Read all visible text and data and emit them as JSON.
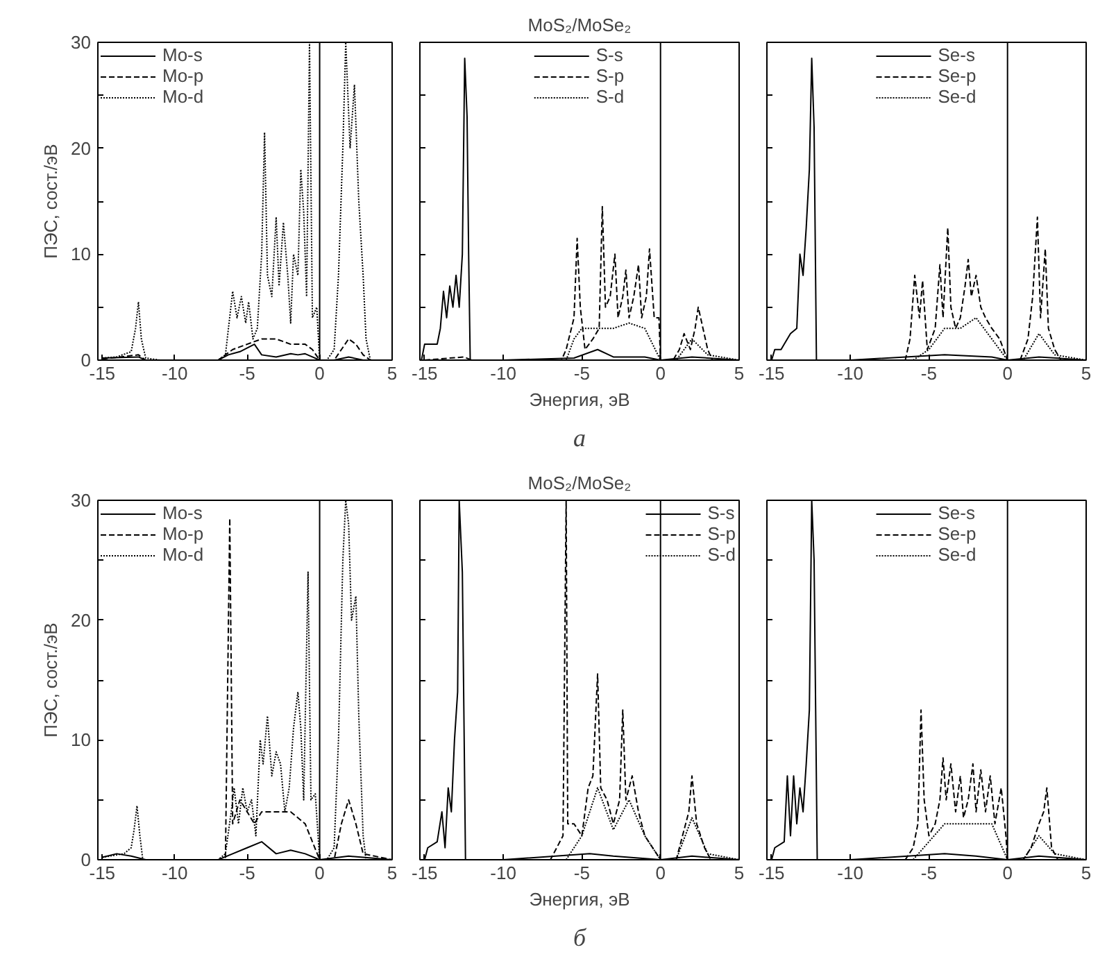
{
  "chart_data": [
    {
      "type": "line",
      "ylabel": "ПЭС, сост./эВ",
      "xlim": [
        -15.3,
        5
      ],
      "ylim": [
        0,
        30
      ],
      "xticks": [
        -15,
        -10,
        -5,
        0,
        5
      ],
      "yticks": [
        0,
        {
          "value": 5,
          "label": null
        },
        10,
        {
          "value": 15,
          "label": null
        },
        20,
        {
          "value": 25,
          "label": null
        },
        30
      ],
      "legend": "top left",
      "ref_lines": [
        {
          "axis": "x",
          "value": 0
        }
      ],
      "series": [
        {
          "name": "Mo-s",
          "color": "#000000",
          "line_style": "solid",
          "x": [
            -15,
            -12.5,
            -12,
            -7,
            -6.3,
            -5.5,
            -4.5,
            -4,
            -3,
            -2,
            -1.5,
            -1,
            -0.5,
            0,
            1,
            2,
            3,
            5
          ],
          "values": [
            0.2,
            0.3,
            0,
            0,
            0.5,
            0.8,
            1.5,
            0.5,
            0.3,
            0.6,
            0.5,
            0.6,
            0.3,
            0,
            0,
            0.3,
            0,
            0
          ]
        },
        {
          "name": "Mo-p",
          "color": "#000000",
          "line_style": "dashed",
          "x": [
            -15,
            -12.5,
            -12,
            -7,
            -6,
            -5,
            -4,
            -3,
            -2,
            -1,
            -0.5,
            0,
            1,
            1.5,
            2,
            2.5,
            3,
            3.5,
            5
          ],
          "values": [
            0.1,
            0.5,
            0,
            0,
            1,
            1.5,
            2,
            2,
            1.5,
            1.5,
            1,
            0,
            0,
            1,
            2,
            1.5,
            0.5,
            0,
            0
          ]
        },
        {
          "name": "Mo-d",
          "color": "#000000",
          "line_style": "dotted",
          "x": [
            -15,
            -14,
            -13,
            -12.7,
            -12.5,
            -12.3,
            -12,
            -11,
            -7,
            -6.5,
            -6,
            -5.7,
            -5.4,
            -5.1,
            -4.9,
            -4.6,
            -4.3,
            -4,
            -3.8,
            -3.6,
            -3.3,
            -3,
            -2.8,
            -2.5,
            -2.2,
            -2,
            -1.8,
            -1.5,
            -1.3,
            -1.1,
            -0.9,
            -0.7,
            -0.5,
            -0.2,
            0,
            0.5,
            1,
            1.3,
            1.6,
            1.8,
            2.1,
            2.4,
            2.7,
            3,
            3.2,
            3.5,
            5
          ],
          "values": [
            0.2,
            0.3,
            0.8,
            3,
            5.5,
            2,
            0.2,
            0,
            0,
            0.5,
            6.5,
            4,
            6,
            3.5,
            5.5,
            2,
            3,
            10,
            21.5,
            8,
            6,
            13.5,
            7,
            13,
            8,
            3.5,
            10,
            8,
            18,
            14,
            6,
            30,
            4,
            5,
            0,
            0,
            1,
            8,
            20,
            30,
            20,
            26,
            15,
            8,
            2,
            0,
            0
          ]
        }
      ]
    },
    {
      "type": "line",
      "title": "MoS₂/MoSe₂",
      "xlabel": "Энергия, эВ",
      "annotations": [
        "а"
      ],
      "xlim": [
        -15.3,
        5
      ],
      "ylim": [
        0,
        30
      ],
      "xticks": [
        -15,
        -10,
        -5,
        0,
        5
      ],
      "yticks": [
        0,
        {
          "value": 5,
          "label": null
        },
        10,
        {
          "value": 15,
          "label": null
        },
        20,
        {
          "value": 25,
          "label": null
        },
        30
      ],
      "tick_labels": "x",
      "legend": "top",
      "ref_lines": [
        {
          "axis": "x",
          "value": 0
        }
      ],
      "series": [
        {
          "name": "S-s",
          "color": "#000000",
          "line_style": "solid",
          "x": [
            -15.2,
            -15,
            -14.6,
            -14.2,
            -14,
            -13.8,
            -13.6,
            -13.4,
            -13.2,
            -13,
            -12.8,
            -12.6,
            -12.45,
            -12.3,
            -12.2,
            -12.1,
            -10,
            -5.5,
            -4,
            -3,
            -1,
            0,
            2,
            5
          ],
          "values": [
            0,
            1.5,
            1.5,
            1.5,
            3,
            6.5,
            4,
            7,
            5,
            8,
            5,
            10,
            28.5,
            23,
            10,
            0,
            0,
            0.2,
            1,
            0.3,
            0.3,
            0,
            0.3,
            0
          ]
        },
        {
          "name": "S-p",
          "color": "#000000",
          "line_style": "dashed",
          "x": [
            -15,
            -12.5,
            -12,
            -6.3,
            -6,
            -5.5,
            -5.3,
            -5.1,
            -4.8,
            -4.3,
            -3.9,
            -3.7,
            -3.5,
            -3.2,
            -2.9,
            -2.7,
            -2.4,
            -2.2,
            -2,
            -1.7,
            -1.4,
            -1.2,
            -0.9,
            -0.7,
            -0.4,
            -0.1,
            0,
            0.8,
            1.2,
            1.5,
            1.9,
            2.2,
            2.4,
            2.7,
            3,
            3.3,
            5
          ],
          "values": [
            0,
            0.3,
            0,
            0,
            1,
            4,
            11.5,
            5,
            1,
            2,
            3,
            14.5,
            5,
            6,
            10,
            4,
            6,
            8.5,
            4,
            6,
            9,
            4,
            6,
            10.5,
            4,
            4,
            0,
            0,
            1,
            2.5,
            1,
            3,
            5,
            3,
            1,
            0,
            0
          ]
        },
        {
          "name": "S-d",
          "color": "#000000",
          "line_style": "dotted",
          "x": [
            -15,
            -6,
            -5.5,
            -5,
            -4,
            -3,
            -2,
            -1,
            0,
            1,
            2,
            3,
            5
          ],
          "values": [
            0,
            0,
            2,
            3,
            3,
            3,
            3.5,
            3,
            0,
            0,
            2,
            0.5,
            0
          ]
        }
      ]
    },
    {
      "type": "line",
      "xlim": [
        -15.3,
        5
      ],
      "ylim": [
        0,
        30
      ],
      "xticks": [
        -15,
        -10,
        -5,
        0,
        5
      ],
      "yticks": [
        0,
        {
          "value": 5,
          "label": null
        },
        10,
        {
          "value": 15,
          "label": null
        },
        20,
        {
          "value": 25,
          "label": null
        },
        30
      ],
      "tick_labels": "x",
      "legend": "top",
      "ref_lines": [
        {
          "axis": "x",
          "value": 0
        }
      ],
      "series": [
        {
          "name": "Se-s",
          "color": "#000000",
          "line_style": "solid",
          "x": [
            -15,
            -14.8,
            -14.4,
            -14.2,
            -13.8,
            -13.4,
            -13.2,
            -13,
            -12.8,
            -12.6,
            -12.45,
            -12.3,
            -12.15,
            -10,
            -4,
            -1,
            0,
            2,
            5
          ],
          "values": [
            0,
            1,
            1,
            1.5,
            2.5,
            3,
            10,
            8,
            12.5,
            18,
            28.5,
            22,
            0,
            0,
            0.5,
            0.3,
            0,
            0.3,
            0
          ]
        },
        {
          "name": "Se-p",
          "color": "#000000",
          "line_style": "dashed",
          "x": [
            -15,
            -6.5,
            -6.2,
            -5.9,
            -5.6,
            -5.4,
            -5.1,
            -4.6,
            -4.3,
            -4.1,
            -3.8,
            -3.6,
            -3.3,
            -3,
            -2.7,
            -2.5,
            -2.3,
            -2,
            -1.7,
            -1.4,
            -1,
            -0.5,
            0,
            0.8,
            1.3,
            1.6,
            1.9,
            2.1,
            2.4,
            2.6,
            3,
            3.4,
            5
          ],
          "values": [
            0,
            0,
            2,
            8,
            4,
            7.5,
            1,
            3,
            9,
            4,
            12.5,
            5,
            3,
            4,
            7,
            9.5,
            6,
            8,
            5,
            4,
            3,
            2,
            0,
            0,
            2,
            6,
            13.5,
            4,
            10.5,
            3,
            1,
            0,
            0
          ]
        },
        {
          "name": "Se-d",
          "color": "#000000",
          "line_style": "dotted",
          "x": [
            -15,
            -6,
            -5,
            -4,
            -3,
            -2,
            -1,
            0,
            1,
            2,
            3,
            5
          ],
          "values": [
            0,
            0,
            1,
            3,
            3,
            4,
            2,
            0,
            0,
            2.5,
            0.5,
            0
          ]
        }
      ]
    },
    {
      "type": "line",
      "ylabel": "ПЭС, сост./эВ",
      "xlim": [
        -15.3,
        5
      ],
      "ylim": [
        0,
        30
      ],
      "xticks": [
        -15,
        -10,
        -5,
        0,
        5
      ],
      "yticks": [
        0,
        {
          "value": 5,
          "label": null
        },
        10,
        {
          "value": 15,
          "label": null
        },
        20,
        {
          "value": 25,
          "label": null
        },
        30
      ],
      "legend": "top left",
      "ref_lines": [
        {
          "axis": "x",
          "value": 0
        }
      ],
      "series": [
        {
          "name": "Mo-s",
          "color": "#000000",
          "line_style": "solid",
          "x": [
            -15,
            -14,
            -13,
            -12,
            -7,
            -6,
            -5,
            -4,
            -3,
            -2,
            -1,
            0,
            2,
            5
          ],
          "values": [
            0.2,
            0.5,
            0.3,
            0,
            0,
            0.5,
            1,
            1.5,
            0.5,
            0.8,
            0.5,
            0,
            0.3,
            0
          ]
        },
        {
          "name": "Mo-p",
          "color": "#000000",
          "line_style": "dashed",
          "x": [
            -15,
            -6.5,
            -6.2,
            -6,
            -5.5,
            -5,
            -4.5,
            -4,
            -3,
            -2,
            -1,
            0,
            1,
            1.5,
            2,
            2.5,
            3,
            5
          ],
          "values": [
            0,
            0,
            28.5,
            3,
            5,
            4,
            3,
            4,
            4,
            4,
            3,
            0,
            0,
            3,
            5,
            3,
            0.5,
            0
          ]
        },
        {
          "name": "Mo-d",
          "color": "#000000",
          "line_style": "dotted",
          "x": [
            -15,
            -13.5,
            -13,
            -12.8,
            -12.6,
            -12.4,
            -12.2,
            -7,
            -6.5,
            -6.1,
            -5.9,
            -5.6,
            -5.3,
            -5,
            -4.7,
            -4.4,
            -4.1,
            -3.9,
            -3.6,
            -3.3,
            -3,
            -2.7,
            -2.4,
            -2.1,
            -1.8,
            -1.5,
            -1.3,
            -1.1,
            -0.8,
            -0.6,
            -0.3,
            0,
            0.5,
            1,
            1.3,
            1.6,
            1.8,
            2,
            2.2,
            2.5,
            2.7,
            3,
            3.2,
            5
          ],
          "values": [
            0.2,
            0.5,
            1,
            2.5,
            4.5,
            2,
            0,
            0,
            0.5,
            4,
            6,
            3,
            6,
            4,
            5,
            2,
            10,
            8,
            12,
            7,
            9,
            8,
            4,
            6,
            11,
            14,
            11,
            5,
            24,
            5,
            5.5,
            0,
            0,
            1,
            10,
            25,
            30,
            28,
            20,
            22,
            12,
            2,
            0,
            0
          ]
        }
      ]
    },
    {
      "type": "line",
      "title": "MoS₂/MoSe₂",
      "xlabel": "Энергия, эВ",
      "annotations": [
        "б"
      ],
      "xlim": [
        -15.3,
        5
      ],
      "ylim": [
        0,
        30
      ],
      "xticks": [
        -15,
        -10,
        -5,
        0,
        5
      ],
      "yticks": [
        0,
        {
          "value": 5,
          "label": null
        },
        10,
        {
          "value": 15,
          "label": null
        },
        20,
        {
          "value": 25,
          "label": null
        },
        30
      ],
      "tick_labels": "x",
      "legend": "top right",
      "ref_lines": [
        {
          "axis": "x",
          "value": 0
        }
      ],
      "series": [
        {
          "name": "S-s",
          "color": "#000000",
          "line_style": "solid",
          "x": [
            -15,
            -14.8,
            -14.2,
            -13.9,
            -13.7,
            -13.5,
            -13.3,
            -13.1,
            -12.9,
            -12.8,
            -12.6,
            -12.4,
            -10,
            -4.5,
            -3,
            0,
            2,
            5
          ],
          "values": [
            0,
            1,
            1.5,
            4,
            1,
            6,
            4,
            10,
            14,
            30,
            24,
            0,
            0,
            0.5,
            0.3,
            0,
            0.3,
            0
          ]
        },
        {
          "name": "S-p",
          "color": "#000000",
          "line_style": "dashed",
          "x": [
            -15,
            -7,
            -6.6,
            -6.2,
            -6,
            -5.9,
            -5.5,
            -5,
            -4.6,
            -4.3,
            -4,
            -3.8,
            -3.4,
            -3,
            -2.6,
            -2.4,
            -2.2,
            -1.8,
            -1.4,
            -1,
            -0.5,
            0,
            1,
            1.4,
            1.8,
            2,
            2.3,
            2.8,
            3.2,
            5
          ],
          "values": [
            0,
            0,
            1,
            2,
            30,
            3,
            3,
            2,
            6,
            7,
            15.5,
            6,
            5,
            3,
            5,
            12.5,
            5,
            7,
            4,
            2,
            1,
            0,
            0,
            2,
            4,
            7,
            3,
            1,
            0,
            0
          ]
        },
        {
          "name": "S-d",
          "color": "#000000",
          "line_style": "dotted",
          "x": [
            -15,
            -6,
            -5,
            -4,
            -3,
            -2,
            -1,
            0,
            1,
            2,
            3,
            5
          ],
          "values": [
            0,
            0,
            2,
            6,
            2.5,
            5,
            2,
            0,
            0,
            3.5,
            0.5,
            0
          ]
        }
      ]
    },
    {
      "type": "line",
      "xlim": [
        -15.3,
        5
      ],
      "ylim": [
        0,
        30
      ],
      "xticks": [
        -15,
        -10,
        -5,
        0,
        5
      ],
      "yticks": [
        0,
        {
          "value": 5,
          "label": null
        },
        10,
        {
          "value": 15,
          "label": null
        },
        20,
        {
          "value": 25,
          "label": null
        },
        30
      ],
      "tick_labels": "x",
      "legend": "top",
      "ref_lines": [
        {
          "axis": "x",
          "value": 0
        }
      ],
      "series": [
        {
          "name": "Se-s",
          "color": "#000000",
          "line_style": "solid",
          "x": [
            -15,
            -14.8,
            -14.2,
            -14,
            -13.8,
            -13.6,
            -13.4,
            -13.2,
            -13,
            -12.8,
            -12.6,
            -12.45,
            -12.3,
            -12.1,
            -10,
            -4,
            -2,
            0,
            2,
            5
          ],
          "values": [
            0,
            1,
            1.5,
            7,
            2,
            7,
            3,
            6,
            4,
            8,
            12.5,
            30,
            25,
            0,
            0,
            0.5,
            0.3,
            0,
            0.3,
            0
          ]
        },
        {
          "name": "Se-p",
          "color": "#000000",
          "line_style": "dashed",
          "x": [
            -15,
            -6.5,
            -6,
            -5.7,
            -5.5,
            -5.3,
            -5,
            -4.6,
            -4.3,
            -4.1,
            -3.9,
            -3.6,
            -3.3,
            -3,
            -2.8,
            -2.5,
            -2.2,
            -2,
            -1.7,
            -1.4,
            -1.1,
            -0.8,
            -0.4,
            -0.1,
            0,
            1,
            1.5,
            2,
            2.3,
            2.5,
            2.8,
            3.2,
            5
          ],
          "values": [
            0,
            0,
            1,
            3,
            12.5,
            5,
            2,
            3,
            5,
            8.5,
            5,
            8,
            4,
            7,
            3.5,
            5,
            8,
            4,
            7.5,
            4,
            7,
            3,
            6,
            2,
            0,
            0,
            1,
            3,
            4,
            6,
            1,
            0,
            0
          ]
        },
        {
          "name": "Se-d",
          "color": "#000000",
          "line_style": "dotted",
          "x": [
            -15,
            -6,
            -5,
            -4,
            -3,
            -2,
            -1,
            0,
            1,
            2,
            3,
            5
          ],
          "values": [
            0,
            0,
            1.5,
            3,
            3,
            3,
            3,
            0,
            0,
            2,
            0.5,
            0
          ]
        }
      ]
    }
  ]
}
